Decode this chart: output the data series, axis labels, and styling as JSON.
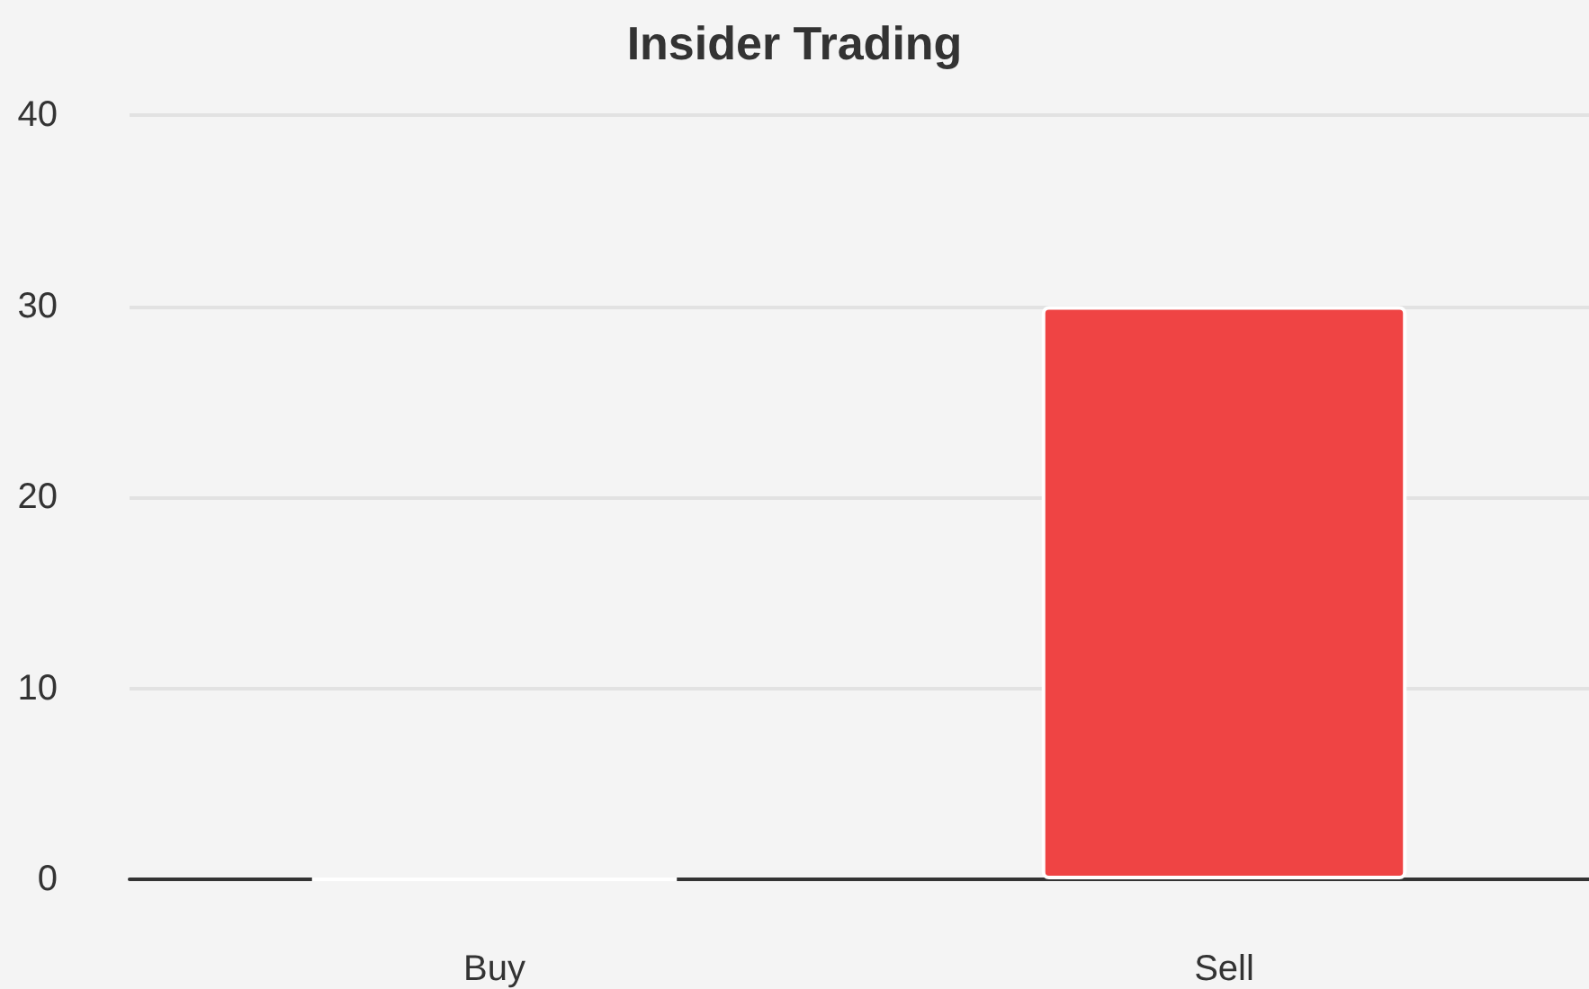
{
  "chart_data": {
    "type": "bar",
    "title": "Insider Trading",
    "categories": [
      "Buy",
      "Sell"
    ],
    "values": [
      0,
      30
    ],
    "colors": [
      "#ffffff",
      "#ef4444"
    ],
    "ylim": [
      0,
      40
    ],
    "yticks": [
      0,
      10,
      20,
      30,
      40
    ],
    "grid": "y"
  }
}
